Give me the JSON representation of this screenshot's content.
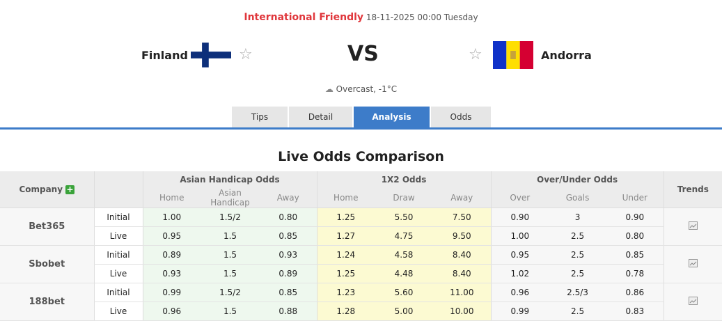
{
  "match": {
    "league": "International Friendly",
    "datetime": "18-11-2025 00:00 Tuesday",
    "home": "Finland",
    "away": "Andorra",
    "vs": "VS",
    "weather": "Overcast, -1°C"
  },
  "tabs": [
    "Tips",
    "Detail",
    "Analysis",
    "Odds"
  ],
  "active_tab": "Analysis",
  "section_title": "Live Odds Comparison",
  "table": {
    "headers": {
      "company": "Company",
      "ah": "Asian Handicap Odds",
      "x12": "1X2 Odds",
      "ou": "Over/Under Odds",
      "trends": "Trends"
    },
    "subheaders": {
      "ah": [
        "Home",
        "Asian Handicap",
        "Away"
      ],
      "x12": [
        "Home",
        "Draw",
        "Away"
      ],
      "ou": [
        "Over",
        "Goals",
        "Under"
      ]
    },
    "rows": [
      {
        "company": "Bet365",
        "initial": {
          "label": "Initial",
          "ah": [
            "1.00",
            "1.5/2",
            "0.80"
          ],
          "x12": [
            "1.25",
            "5.50",
            "7.50"
          ],
          "ou": [
            "0.90",
            "3",
            "0.90"
          ]
        },
        "live": {
          "label": "Live",
          "ah": [
            "0.95",
            "1.5",
            "0.85"
          ],
          "x12": [
            "1.27",
            "4.75",
            "9.50"
          ],
          "ou": [
            "1.00",
            "2.5",
            "0.80"
          ]
        }
      },
      {
        "company": "Sbobet",
        "initial": {
          "label": "Initial",
          "ah": [
            "0.89",
            "1.5",
            "0.93"
          ],
          "x12": [
            "1.24",
            "4.58",
            "8.40"
          ],
          "ou": [
            "0.95",
            "2.5",
            "0.85"
          ]
        },
        "live": {
          "label": "Live",
          "ah": [
            "0.93",
            "1.5",
            "0.89"
          ],
          "x12": [
            "1.25",
            "4.48",
            "8.40"
          ],
          "ou": [
            "1.02",
            "2.5",
            "0.78"
          ]
        }
      },
      {
        "company": "188bet",
        "initial": {
          "label": "Initial",
          "ah": [
            "0.99",
            "1.5/2",
            "0.85"
          ],
          "x12": [
            "1.23",
            "5.60",
            "11.00"
          ],
          "ou": [
            "0.96",
            "2.5/3",
            "0.86"
          ]
        },
        "live": {
          "label": "Live",
          "ah": [
            "0.96",
            "1.5",
            "0.88"
          ],
          "x12": [
            "1.28",
            "5.00",
            "10.00"
          ],
          "ou": [
            "0.99",
            "2.5",
            "0.83"
          ]
        }
      }
    ]
  },
  "colors": {
    "accent": "#3d7cc9",
    "league": "#e0373c",
    "ah_bg": "#eef8ee",
    "x12_bg": "#fcfad2"
  }
}
